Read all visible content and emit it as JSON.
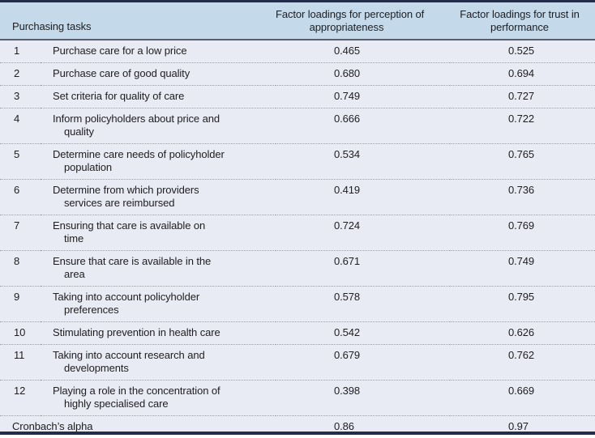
{
  "header": {
    "tasks": "Purchasing tasks",
    "col_appropriateness": "Factor loadings for perception of\nappropriateness",
    "col_trust": "Factor loadings for trust in\nperformance"
  },
  "rows": [
    {
      "num": "1",
      "task": "Purchase care for a low price",
      "appropriateness": "0.465",
      "trust": "0.525"
    },
    {
      "num": "2",
      "task": "Purchase care of good quality",
      "appropriateness": "0.680",
      "trust": "0.694"
    },
    {
      "num": "3",
      "task": "Set criteria for quality of care",
      "appropriateness": "0.749",
      "trust": "0.727"
    },
    {
      "num": "4",
      "task": "Inform policyholders about price and\nquality",
      "appropriateness": "0.666",
      "trust": "0.722"
    },
    {
      "num": "5",
      "task": "Determine care needs of policyholder\npopulation",
      "appropriateness": "0.534",
      "trust": "0.765"
    },
    {
      "num": "6",
      "task": "Determine from which providers\nservices are reimbursed",
      "appropriateness": "0.419",
      "trust": "0.736"
    },
    {
      "num": "7",
      "task": "Ensuring that care is available on\ntime",
      "appropriateness": "0.724",
      "trust": "0.769"
    },
    {
      "num": "8",
      "task": "Ensure that care is available in the\narea",
      "appropriateness": "0.671",
      "trust": "0.749"
    },
    {
      "num": "9",
      "task": "Taking into account policyholder\npreferences",
      "appropriateness": "0.578",
      "trust": "0.795"
    },
    {
      "num": "10",
      "task": "Stimulating prevention in health care",
      "appropriateness": "0.542",
      "trust": "0.626"
    },
    {
      "num": "11",
      "task": "Taking into account research and\ndevelopments",
      "appropriateness": "0.679",
      "trust": "0.762"
    },
    {
      "num": "12",
      "task": "Playing a role in the concentration of\nhighly specialised care",
      "appropriateness": "0.398",
      "trust": "0.669"
    }
  ],
  "footer": {
    "label": "Cronbach’s alpha",
    "appropriateness": "0.86",
    "trust": "0.97"
  },
  "colors": {
    "header_bg": "#c4d9ea",
    "body_bg": "#e8ebf4",
    "border_dark": "#212d49",
    "header_rule": "#555f6e",
    "row_dotted": "#9aa0a6",
    "text": "#1e1e20"
  }
}
